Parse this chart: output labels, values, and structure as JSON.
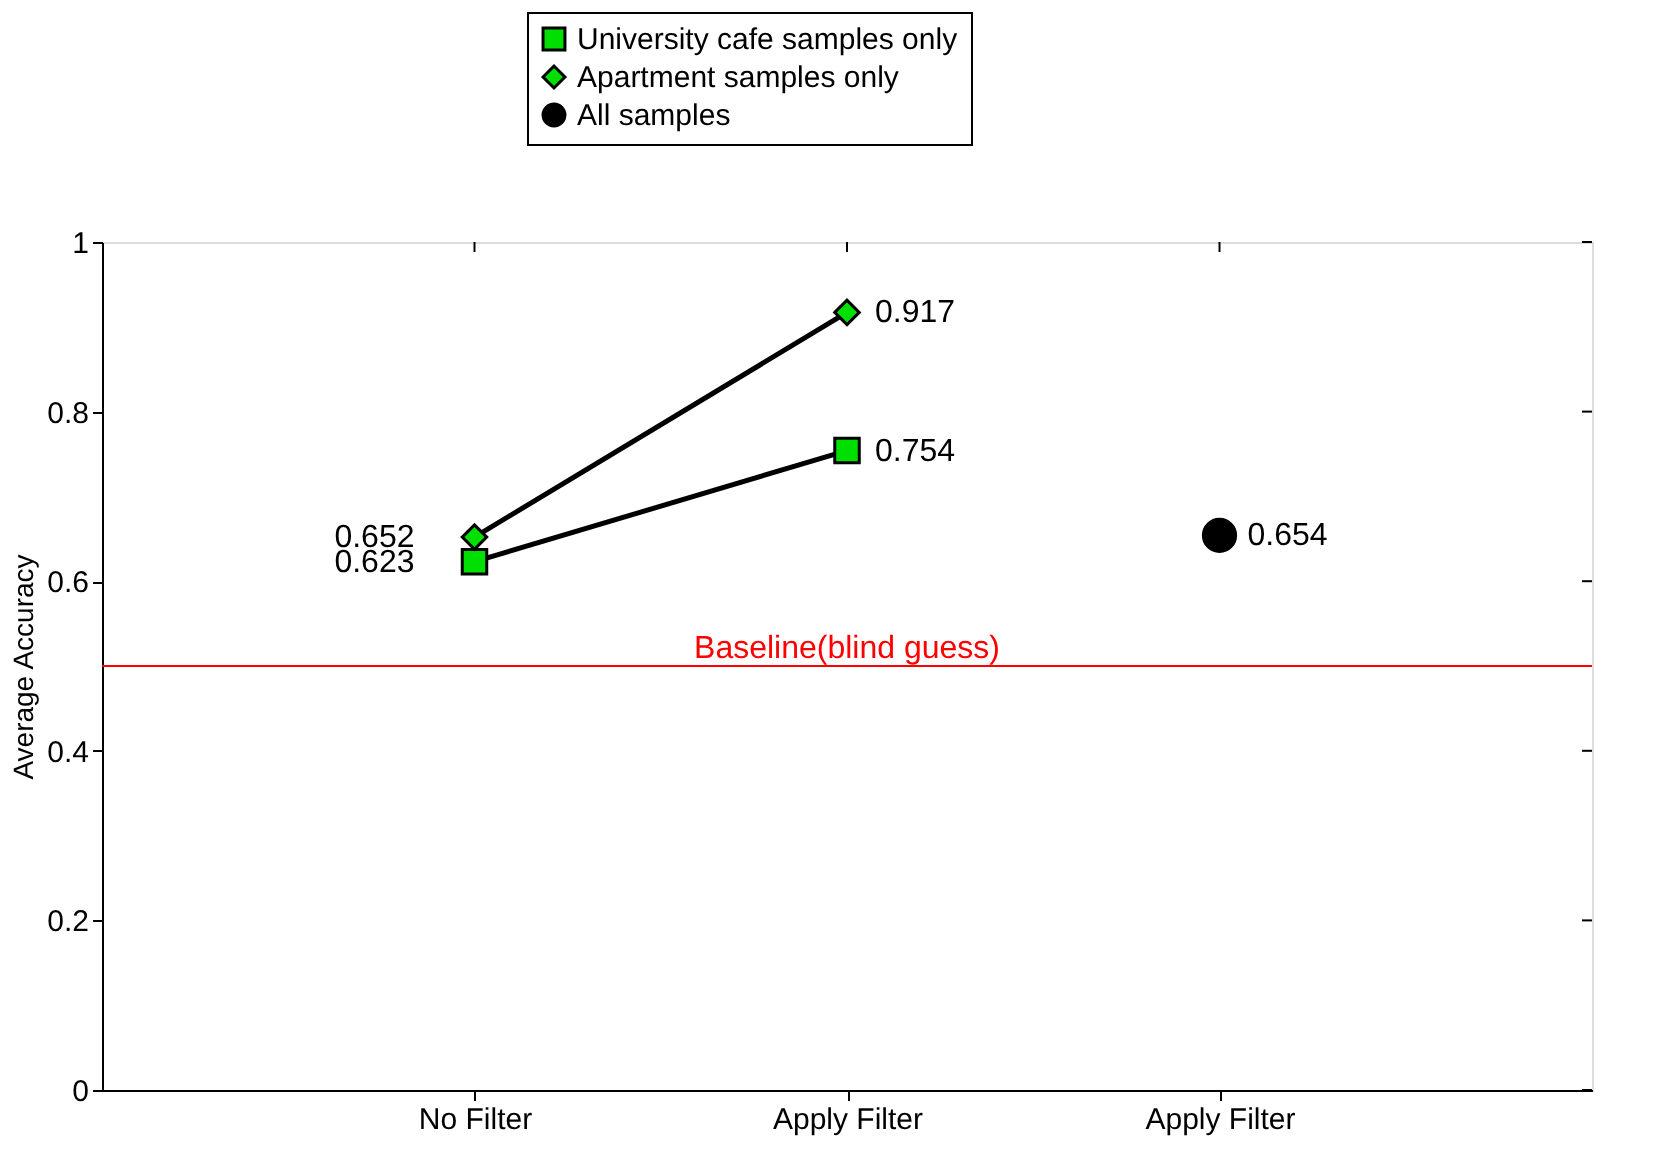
{
  "chart_data": {
    "type": "line",
    "ylabel": "Average Accuracy",
    "categories": [
      "No Filter",
      "Apply Filter",
      "Apply Filter"
    ],
    "series": [
      {
        "name": "University cafe samples only",
        "color": "#00e000",
        "marker": "square",
        "values": [
          0.623,
          0.754,
          null
        ]
      },
      {
        "name": "Apartment samples only",
        "color": "#00e000",
        "marker": "diamond",
        "values": [
          0.652,
          0.917,
          null
        ]
      },
      {
        "name": "All samples",
        "type": "scatter",
        "color": "#000000",
        "marker": "circle",
        "values": [
          null,
          null,
          0.654
        ]
      }
    ],
    "ylim": [
      0,
      1
    ],
    "yticks": [
      0,
      0.2,
      0.4,
      0.6,
      0.8,
      1
    ],
    "ref_lines": [
      {
        "axis": "y",
        "value": 0.5,
        "label": "Baseline(blind guess)",
        "color": "#ff0000"
      }
    ],
    "data_labels": true,
    "legend": "top",
    "grid": false
  }
}
